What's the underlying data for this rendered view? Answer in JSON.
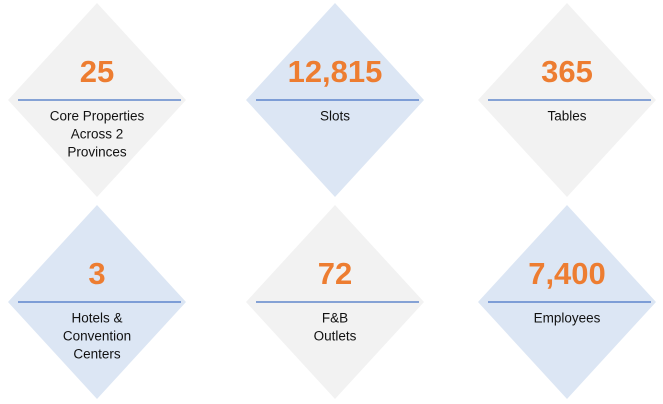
{
  "items": [
    {
      "value": "25",
      "lines": [
        "Core Properties",
        "Across 2",
        "Provinces"
      ],
      "color": "#f2f2f2"
    },
    {
      "value": "12,815",
      "lines": [
        "Slots"
      ],
      "color": "#dce6f4"
    },
    {
      "value": "365",
      "lines": [
        "Tables"
      ],
      "color": "#f2f2f2"
    },
    {
      "value": "3",
      "lines": [
        "Hotels &",
        "Convention",
        "Centers"
      ],
      "color": "#dce6f4"
    },
    {
      "value": "72",
      "lines": [
        "F&B",
        "Outlets"
      ],
      "color": "#f2f2f2"
    },
    {
      "value": "7,400",
      "lines": [
        "Employees"
      ],
      "color": "#dce6f4"
    }
  ]
}
